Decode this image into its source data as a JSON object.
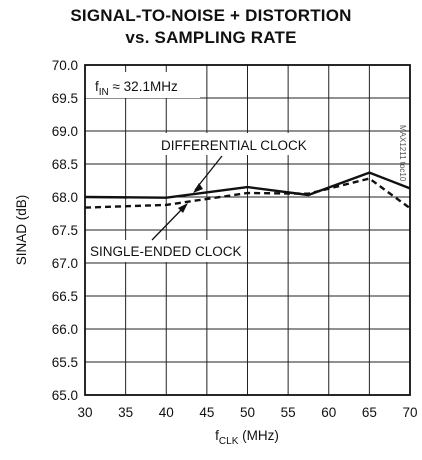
{
  "chart_data": {
    "type": "line",
    "title_line1": "SIGNAL-TO-NOISE + DISTORTION",
    "title_line2": "vs. SAMPLING RATE",
    "ylabel": "SINAD (dB)",
    "xlabel_main": "f",
    "xlabel_sub": "CLK",
    "xlabel_unit": " (MHz)",
    "xlim": [
      30,
      70
    ],
    "ylim": [
      65.0,
      70.0
    ],
    "x_ticks": [
      "30",
      "35",
      "40",
      "45",
      "50",
      "55",
      "60",
      "65",
      "70"
    ],
    "y_ticks": [
      "70.0",
      "69.5",
      "69.0",
      "68.5",
      "68.0",
      "67.5",
      "67.0",
      "66.5",
      "66.0",
      "65.5",
      "65.0"
    ],
    "grid": true,
    "condition_main": "f",
    "condition_sub": "IN",
    "condition_rest": " ≈ 32.1MHz",
    "figure_code": "MAX1211 toc10",
    "series": [
      {
        "name": "DIFFERENTIAL CLOCK",
        "style": "solid",
        "x": [
          30,
          40,
          50,
          57.5,
          65,
          70
        ],
        "y": [
          68.0,
          67.99,
          68.15,
          68.03,
          68.37,
          68.13
        ]
      },
      {
        "name": "SINGLE-ENDED CLOCK",
        "style": "dashed",
        "x": [
          30,
          40,
          50,
          57.5,
          65,
          70
        ],
        "y": [
          67.84,
          67.88,
          68.06,
          68.05,
          68.28,
          67.83
        ]
      }
    ]
  }
}
